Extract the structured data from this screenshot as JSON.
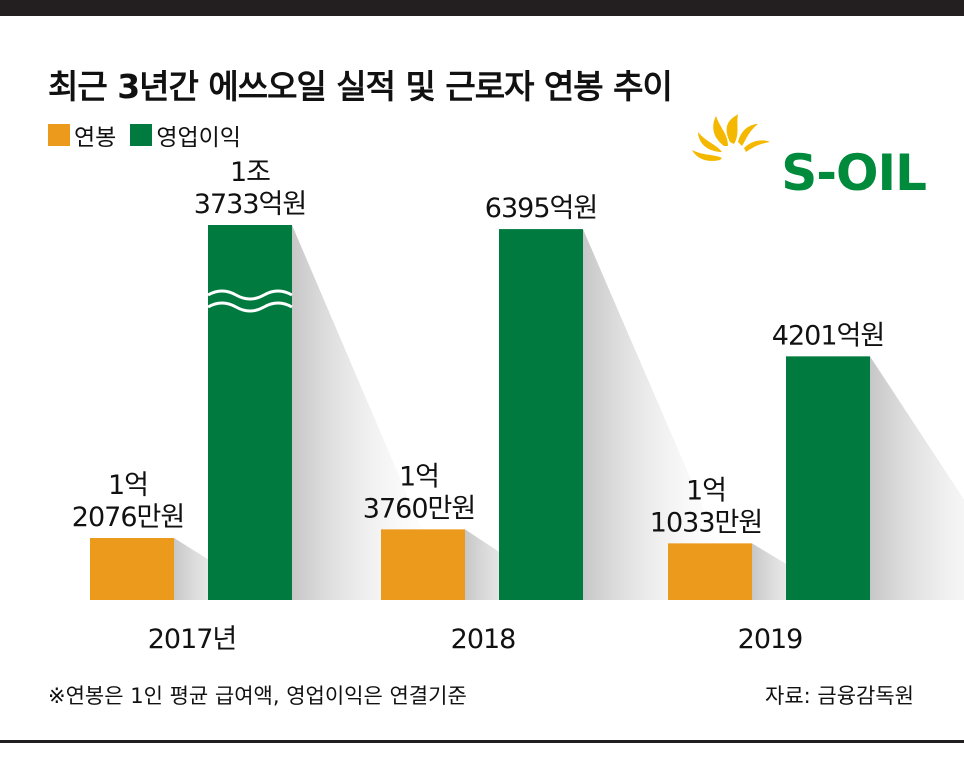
{
  "title": "최근 3년간 에쓰오일 실적 및 근로자 연봉 추이",
  "legend": [
    {
      "label": "연봉",
      "color": "#ec9a1c"
    },
    {
      "label": "영업이익",
      "color": "#007a3e"
    }
  ],
  "logo": {
    "text": "S-OIL",
    "color": "#008a3c",
    "sun_color": "#f5b800"
  },
  "footnote": "※연봉은 1인 평균 급여액, 영업이익은 연결기준",
  "source": "자료: 금융감독원",
  "chart_data": {
    "type": "bar",
    "categories": [
      "2017년",
      "2018",
      "2019"
    ],
    "series": [
      {
        "name": "연봉",
        "color": "#ec9a1c",
        "values": [
          12076,
          13760,
          11033
        ],
        "labels": [
          [
            "1억",
            "2076만원"
          ],
          [
            "1억",
            "3760만원"
          ],
          [
            "1억",
            "1033만원"
          ]
        ]
      },
      {
        "name": "영업이익",
        "color": "#007a3e",
        "values": [
          13733,
          6395,
          4201
        ],
        "labels": [
          [
            "1조",
            "3733억원"
          ],
          [
            "6395억원"
          ],
          [
            "4201억원"
          ]
        ],
        "axis_break_on": [
          0
        ]
      }
    ],
    "xlabel": "",
    "ylabel": "",
    "grid": false,
    "legend_position": "top-left"
  }
}
